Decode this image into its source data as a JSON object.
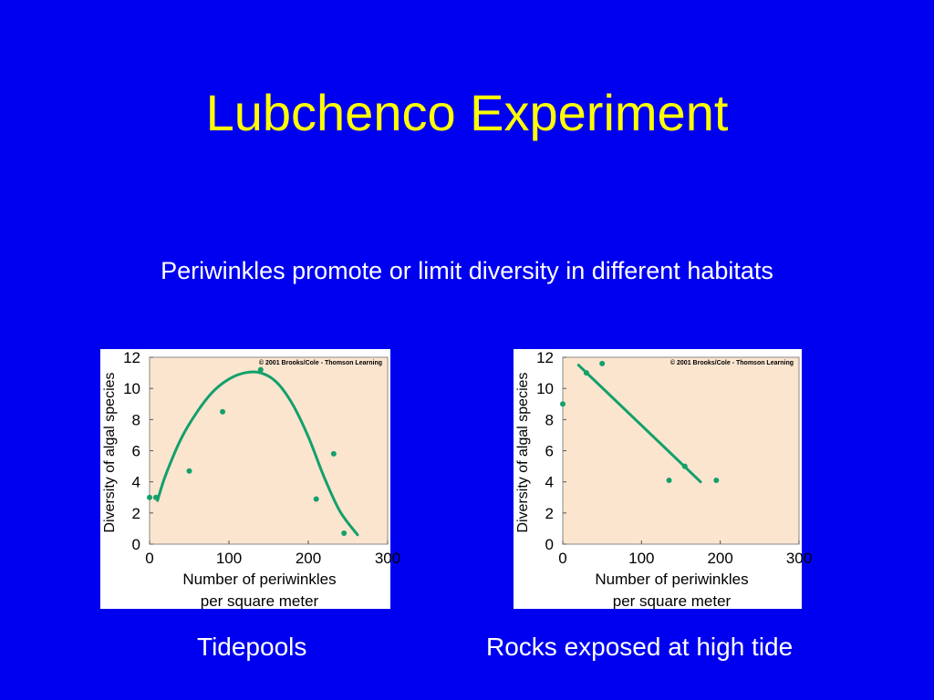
{
  "slide": {
    "title": "Lubchenco Experiment",
    "subtitle": "Periwinkles promote or limit diversity in different habitats",
    "captions": [
      "Tidepools",
      "Rocks exposed at high tide"
    ]
  },
  "colors": {
    "background": "#0000f0",
    "title": "#ffff00",
    "text": "#ffffff",
    "plot_area": "#fbe5cf",
    "series": "#13a06b"
  },
  "chart_data": [
    {
      "type": "scatter",
      "title": "",
      "copyright": "© 2001 Brooks/Cole - Thomson Learning",
      "xlabel": [
        "Number of periwinkles",
        "per square meter"
      ],
      "ylabel": "Diversity of algal species",
      "xlim": [
        0,
        300
      ],
      "ylim": [
        0,
        12
      ],
      "xticks": [
        0,
        100,
        200,
        300
      ],
      "yticks": [
        0,
        2,
        4,
        6,
        8,
        10,
        12
      ],
      "grid": false,
      "points": {
        "x": [
          0,
          8,
          50,
          92,
          140,
          210,
          232,
          245
        ],
        "y": [
          3,
          3,
          4.7,
          8.5,
          11.2,
          2.9,
          5.8,
          0.7
        ]
      },
      "fit": {
        "type": "curve",
        "x": [
          10,
          20,
          40,
          60,
          80,
          100,
          120,
          140,
          160,
          180,
          200,
          220,
          240,
          262
        ],
        "y": [
          2.8,
          4.4,
          6.8,
          8.5,
          9.8,
          10.6,
          11.0,
          11.0,
          10.4,
          9.0,
          6.9,
          4.3,
          2.1,
          0.6
        ]
      }
    },
    {
      "type": "scatter",
      "title": "",
      "copyright": "© 2001 Brooks/Cole - Thomson Learning",
      "xlabel": [
        "Number of periwinkles",
        "per square meter"
      ],
      "ylabel": "Diversity of algal species",
      "xlim": [
        0,
        300
      ],
      "ylim": [
        0,
        12
      ],
      "xticks": [
        0,
        100,
        200,
        300
      ],
      "yticks": [
        0,
        2,
        4,
        6,
        8,
        10,
        12
      ],
      "grid": false,
      "points": {
        "x": [
          0,
          30,
          50,
          135,
          155,
          195
        ],
        "y": [
          9,
          11,
          11.6,
          4.1,
          5,
          4.1
        ]
      },
      "fit": {
        "type": "line",
        "x": [
          20,
          175
        ],
        "y": [
          11.5,
          4.0
        ]
      }
    }
  ]
}
